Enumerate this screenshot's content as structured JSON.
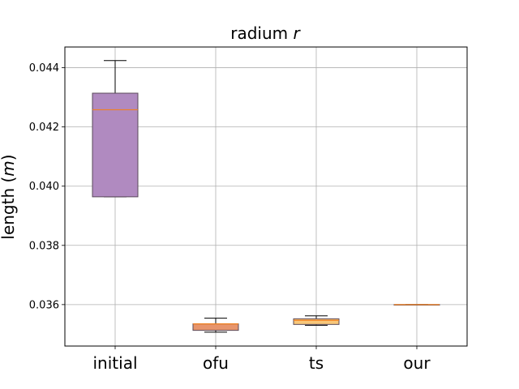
{
  "chart_data": {
    "type": "box",
    "title": "radium",
    "title_var": "r",
    "ylabel": "length (",
    "ylabel_var": "m",
    "ylabel_suffix": ")",
    "ylim": [
      0.0346,
      0.0447
    ],
    "yticks": [
      "0.036",
      "0.038",
      "0.040",
      "0.042",
      "0.044"
    ],
    "categories": [
      "initial",
      "ofu",
      "ts",
      "our"
    ],
    "grid": true,
    "boxes": [
      {
        "category": "initial",
        "whisker_low": 0.03964,
        "q1": 0.03964,
        "median": 0.04258,
        "q3": 0.04314,
        "whisker_high": 0.04424,
        "color": "#b08ac0"
      },
      {
        "category": "ofu",
        "whisker_low": 0.03507,
        "q1": 0.03513,
        "median": 0.03535,
        "q3": 0.03535,
        "whisker_high": 0.03554,
        "color": "#e7956c"
      },
      {
        "category": "ts",
        "whisker_low": 0.0353,
        "q1": 0.03533,
        "median": 0.03547,
        "q3": 0.03552,
        "whisker_high": 0.03562,
        "color": "#f8c77a"
      },
      {
        "category": "our",
        "whisker_low": 0.036,
        "q1": 0.036,
        "median": 0.036,
        "q3": 0.036,
        "whisker_high": 0.036,
        "color": "#e98b5b"
      }
    ],
    "median_color": "#f08020"
  }
}
